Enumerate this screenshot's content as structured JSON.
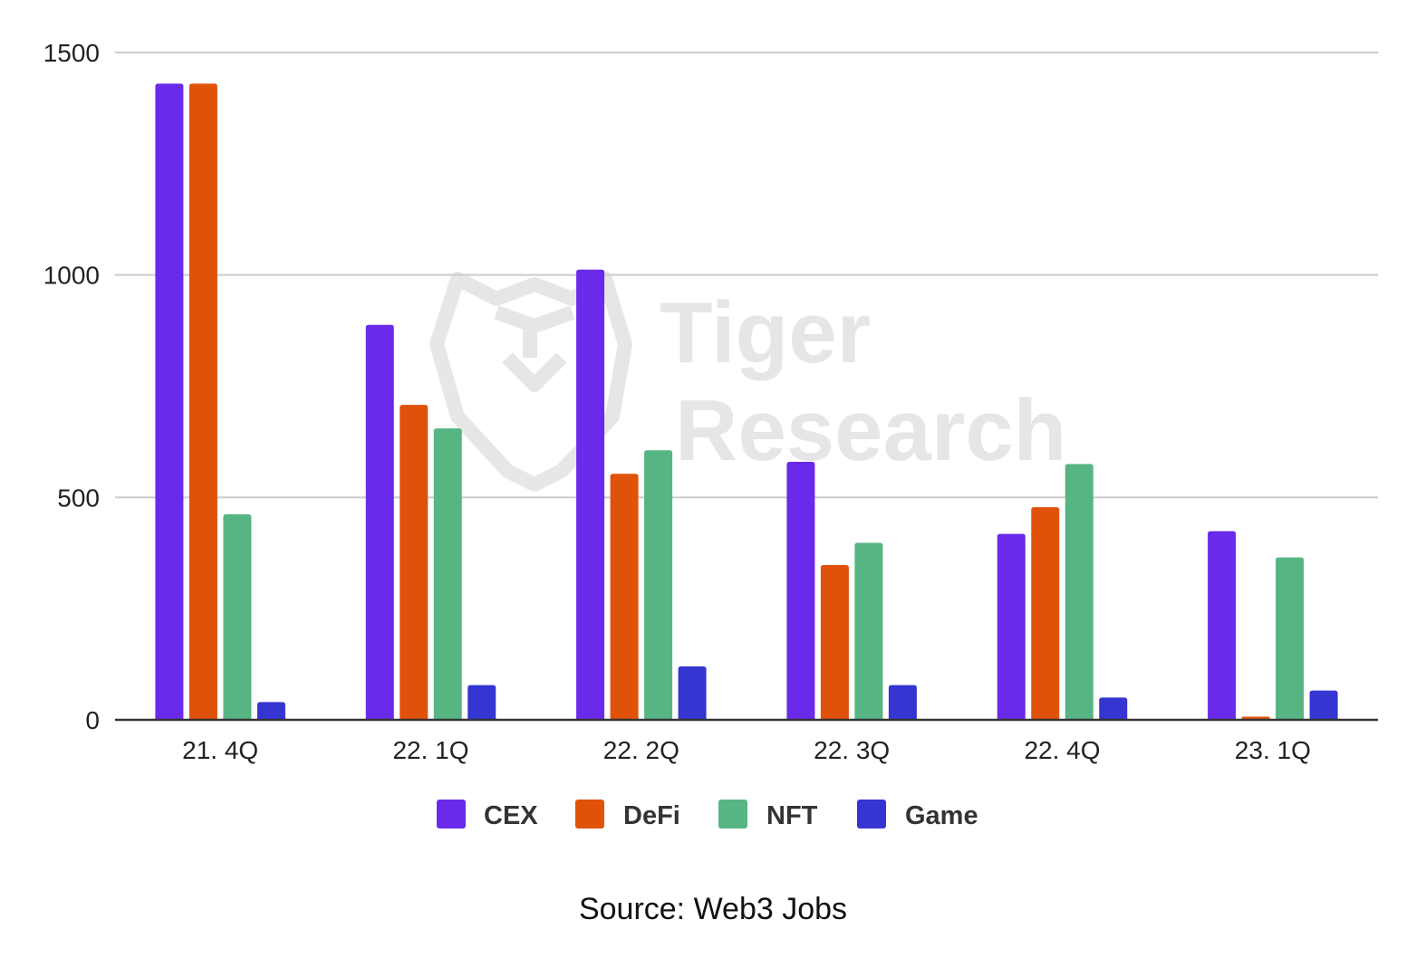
{
  "chart_data": {
    "type": "bar",
    "title": "",
    "xlabel": "",
    "ylabel": "",
    "categories": [
      "21. 4Q",
      "22. 1Q",
      "22. 2Q",
      "22. 3Q",
      "22. 4Q",
      "23. 1Q"
    ],
    "series": [
      {
        "name": "CEX",
        "color": "#6a2aea",
        "values": [
          1430,
          888,
          1012,
          580,
          418,
          424
        ]
      },
      {
        "name": "DeFi",
        "color": "#e0520a",
        "values": [
          1430,
          708,
          553,
          348,
          478,
          7
        ]
      },
      {
        "name": "NFT",
        "color": "#57b583",
        "values": [
          462,
          655,
          606,
          398,
          575,
          365
        ]
      },
      {
        "name": "Game",
        "color": "#3535d2",
        "values": [
          40,
          78,
          120,
          78,
          50,
          66
        ]
      }
    ],
    "ylim": [
      0,
      1500
    ],
    "yticks": [
      0,
      500,
      1000,
      1500
    ],
    "grid": true,
    "legend_position": "bottom"
  },
  "watermark": {
    "line1": "Tiger",
    "line2": "Research",
    "color": "#e6e6e6"
  },
  "source": "Source: Web3 Jobs"
}
